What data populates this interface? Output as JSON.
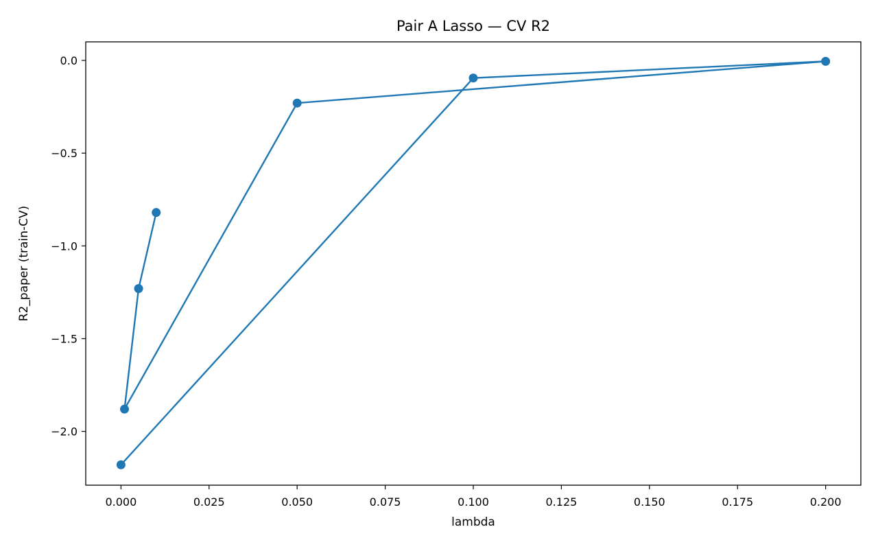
{
  "chart_data": {
    "type": "line",
    "title": "Pair A Lasso — CV R2",
    "xlabel": "lambda",
    "ylabel": "R2_paper (train-CV)",
    "xlim": [
      -0.01,
      0.21
    ],
    "ylim": [
      -2.29,
      0.1
    ],
    "x_ticks": [
      0.0,
      0.025,
      0.05,
      0.075,
      0.1,
      0.125,
      0.15,
      0.175,
      0.2
    ],
    "x_tick_labels": [
      "0.000",
      "0.025",
      "0.050",
      "0.075",
      "0.100",
      "0.125",
      "0.150",
      "0.175",
      "0.200"
    ],
    "y_ticks": [
      0.0,
      -0.5,
      -1.0,
      -1.5,
      -2.0
    ],
    "y_tick_labels": [
      "0.0",
      "−0.5",
      "−1.0",
      "−1.5",
      "−2.0"
    ],
    "grid": false,
    "series": [
      {
        "name": "R2_paper",
        "color": "#1f77b4",
        "x": [
          0.01,
          0.005,
          0.001,
          0.05,
          0.2,
          0.1,
          0.0
        ],
        "y": [
          -0.82,
          -1.23,
          -1.88,
          -0.23,
          -0.005,
          -0.095,
          -2.18
        ]
      }
    ]
  }
}
